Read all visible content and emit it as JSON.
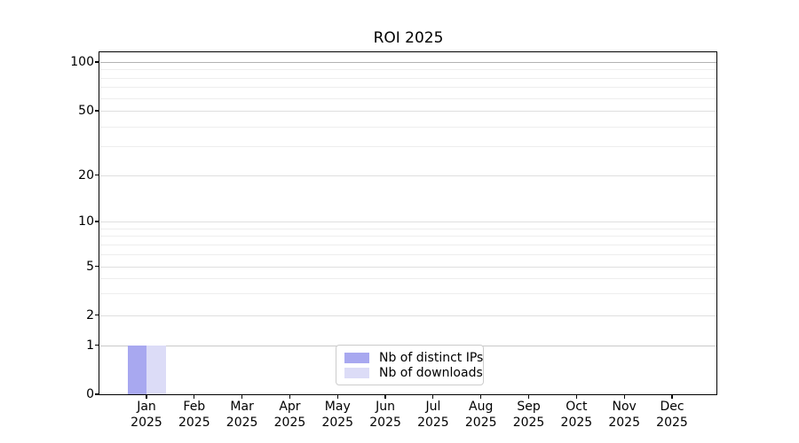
{
  "chart_data": {
    "type": "bar",
    "title": "ROI 2025",
    "categories": [
      {
        "month": "Jan",
        "year": "2025"
      },
      {
        "month": "Feb",
        "year": "2025"
      },
      {
        "month": "Mar",
        "year": "2025"
      },
      {
        "month": "Apr",
        "year": "2025"
      },
      {
        "month": "May",
        "year": "2025"
      },
      {
        "month": "Jun",
        "year": "2025"
      },
      {
        "month": "Jul",
        "year": "2025"
      },
      {
        "month": "Aug",
        "year": "2025"
      },
      {
        "month": "Sep",
        "year": "2025"
      },
      {
        "month": "Oct",
        "year": "2025"
      },
      {
        "month": "Nov",
        "year": "2025"
      },
      {
        "month": "Dec",
        "year": "2025"
      }
    ],
    "series": [
      {
        "name": "Nb of distinct IPs",
        "color": "#a8a8f0",
        "values": [
          1,
          0,
          0,
          0,
          0,
          0,
          0,
          0,
          0,
          0,
          0,
          0
        ]
      },
      {
        "name": "Nb of downloads",
        "color": "#dcdcf7",
        "values": [
          1,
          0,
          0,
          0,
          0,
          0,
          0,
          0,
          0,
          0,
          0,
          0
        ]
      }
    ],
    "y_axis": {
      "scale": "symlog",
      "range": [
        0,
        100
      ],
      "major_ticks": [
        0,
        1,
        2,
        5,
        10,
        20,
        50,
        100
      ],
      "minor_gridlines": [
        3,
        4,
        6,
        7,
        8,
        9,
        30,
        40,
        60,
        70,
        80,
        90
      ]
    },
    "legend": {
      "position": "lower center"
    },
    "grid": true,
    "colors": {
      "grid_major": "#dfdfdf",
      "grid_minor": "#eeeeee",
      "grid_emphasis_top": "#b3b3b3",
      "grid_emphasis_one": "#c9c9c9",
      "axis": "#000000",
      "background": "#ffffff"
    }
  }
}
